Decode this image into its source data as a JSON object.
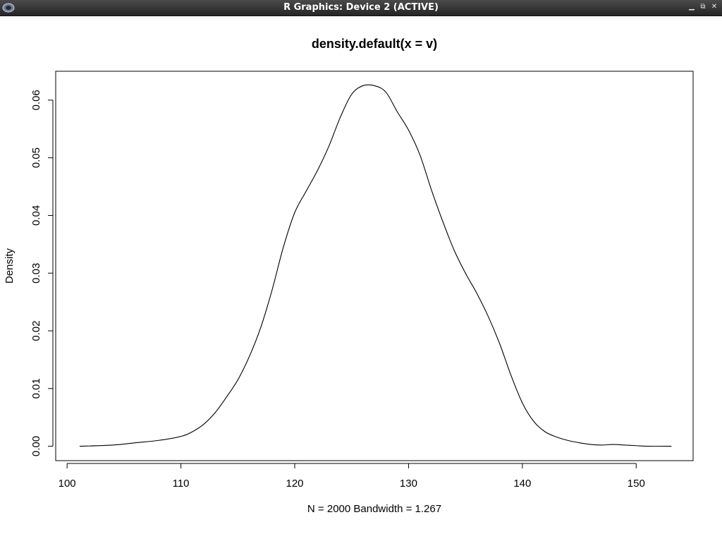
{
  "window": {
    "title": "R Graphics: Device 2 (ACTIVE)",
    "buttons": [
      "minimize",
      "restore",
      "close"
    ],
    "icon": "r-app-icon"
  },
  "chart_data": {
    "type": "line",
    "title": "density.default(x = v)",
    "xlabel": "N = 2000   Bandwidth = 1.267",
    "ylabel": "Density",
    "xlim": [
      99,
      155
    ],
    "ylim": [
      -0.0025,
      0.065
    ],
    "xticks": [
      100,
      110,
      120,
      130,
      140,
      150
    ],
    "xtick_labels": [
      "100",
      "110",
      "120",
      "130",
      "140",
      "150"
    ],
    "yticks": [
      0,
      0.01,
      0.02,
      0.03,
      0.04,
      0.05,
      0.06
    ],
    "ytick_labels": [
      "0.00",
      "0.01",
      "0.02",
      "0.03",
      "0.04",
      "0.05",
      "0.06"
    ],
    "grid": false,
    "series": [
      {
        "x": [
          101.1,
          104,
          106,
          108,
          110,
          111,
          112,
          113,
          114,
          115,
          116,
          117,
          118,
          119,
          120,
          121,
          122,
          123,
          124,
          125,
          126,
          127,
          128,
          129,
          130,
          131,
          132,
          133,
          134,
          135,
          136,
          137,
          138,
          139,
          140,
          141,
          142,
          143,
          144,
          145,
          146,
          147,
          148,
          149,
          150,
          151,
          153.1
        ],
        "y": [
          0.0,
          0.0002,
          0.0006,
          0.001,
          0.0017,
          0.0025,
          0.0038,
          0.0058,
          0.0085,
          0.0115,
          0.0155,
          0.0205,
          0.027,
          0.0345,
          0.0405,
          0.0442,
          0.0478,
          0.052,
          0.057,
          0.061,
          0.0625,
          0.0625,
          0.0614,
          0.058,
          0.0548,
          0.0505,
          0.0445,
          0.039,
          0.034,
          0.03,
          0.0265,
          0.0225,
          0.0178,
          0.0123,
          0.0075,
          0.0043,
          0.0025,
          0.0016,
          0.001,
          0.0006,
          0.0003,
          0.0002,
          0.0003,
          0.0002,
          0.0001,
          0.0,
          0.0
        ]
      }
    ]
  }
}
